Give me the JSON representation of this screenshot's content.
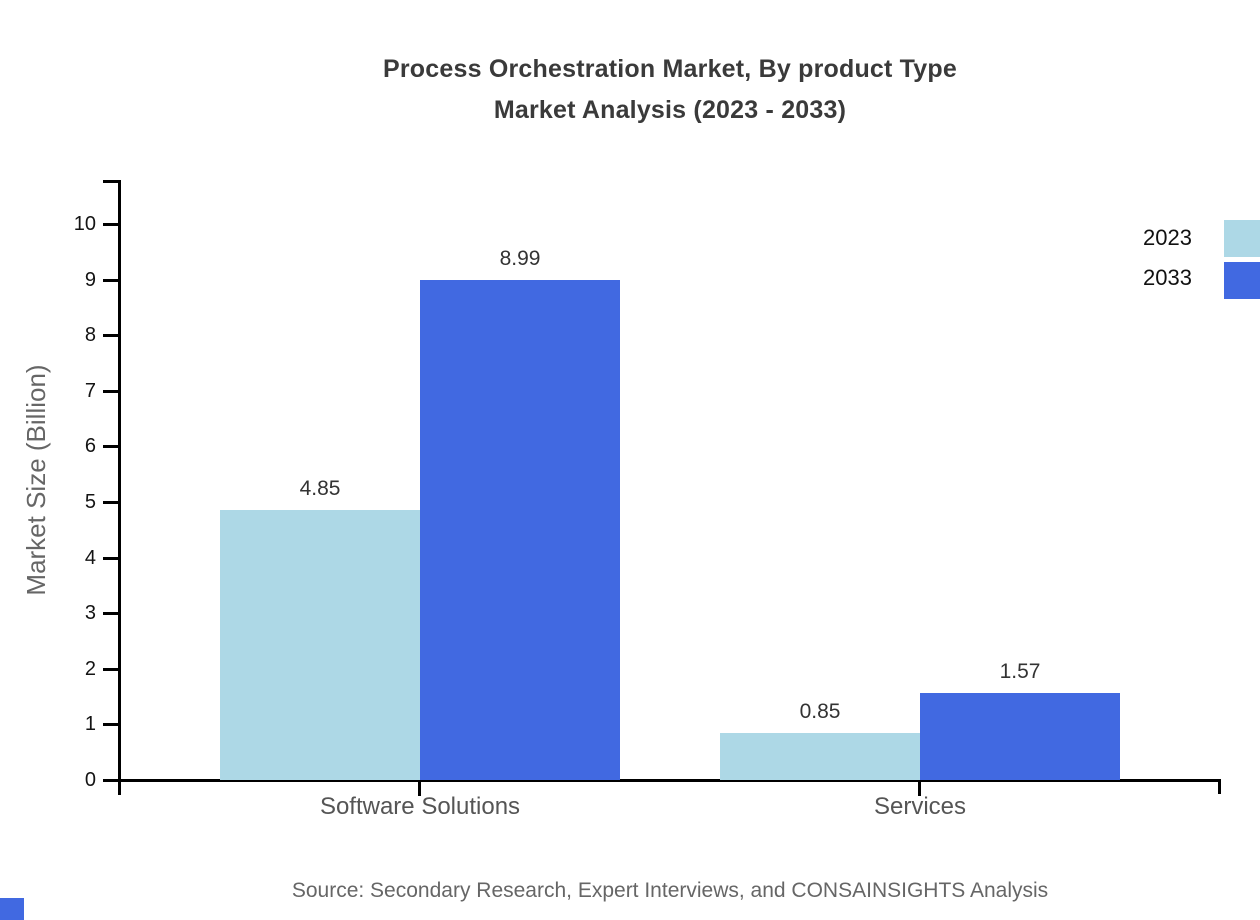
{
  "title": {
    "line1": "Process Orchestration Market, By product Type",
    "line2": "Market Analysis (2023 - 2033)"
  },
  "chart_data": {
    "type": "bar",
    "categories": [
      "Software Solutions",
      "Services"
    ],
    "series": [
      {
        "name": "2023",
        "color": "#ADD8E6",
        "values": [
          4.85,
          0.85
        ]
      },
      {
        "name": "2033",
        "color": "#4169E1",
        "values": [
          8.99,
          1.57
        ]
      }
    ],
    "title": "Process Orchestration Market, By product Type Market Analysis (2023 - 2033)",
    "xlabel": "",
    "ylabel": "Market Size (Billion)",
    "ylim": [
      0,
      10
    ],
    "yticks": [
      0,
      1,
      2,
      3,
      4,
      5,
      6,
      7,
      8,
      9,
      10
    ],
    "grid": false,
    "legend_position": "top-right",
    "value_labels": [
      "4.85",
      "8.99",
      "0.85",
      "1.57"
    ]
  },
  "legend": {
    "items": [
      {
        "label": "2023",
        "color": "#ADD8E6"
      },
      {
        "label": "2033",
        "color": "#4169E1"
      }
    ]
  },
  "source": "Source: Secondary Research, Expert Interviews, and CONSAINSIGHTS Analysis",
  "colors": {
    "accent": "#4169E1",
    "series_2023": "#ADD8E6",
    "series_2033": "#4169E1",
    "axis": "#000000",
    "title_text": "#3a3a3a",
    "muted_text": "#666666",
    "tick_text": "#141414",
    "value_text": "#333333"
  }
}
